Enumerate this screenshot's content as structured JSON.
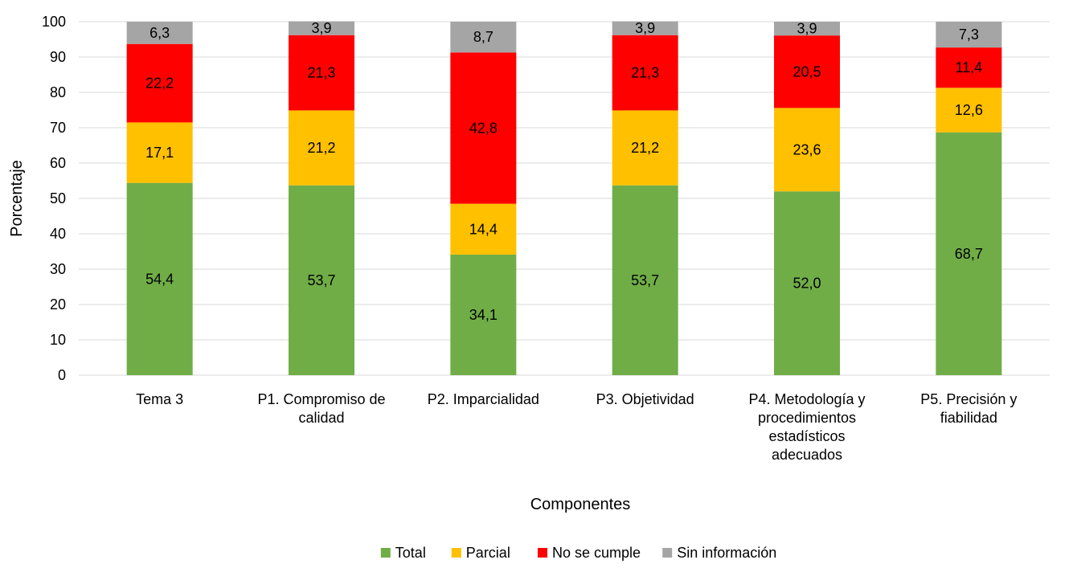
{
  "chart_data": {
    "type": "bar",
    "stacked": true,
    "categories": [
      [
        "Tema 3"
      ],
      [
        "P1. Compromiso de",
        "calidad"
      ],
      [
        "P2. Imparcialidad"
      ],
      [
        "P3. Objetividad"
      ],
      [
        "P4. Metodología y",
        "procedimientos",
        "estadísticos",
        "adecuados"
      ],
      [
        "P5. Precisión y",
        "fiabilidad"
      ]
    ],
    "series": [
      {
        "name": "Total",
        "color": "#70ad47",
        "values": [
          54.4,
          53.7,
          34.1,
          53.7,
          52.0,
          68.7
        ],
        "labels": [
          "54,4",
          "53,7",
          "34,1",
          "53,7",
          "52,0",
          "68,7"
        ]
      },
      {
        "name": "Parcial",
        "color": "#ffc000",
        "values": [
          17.1,
          21.2,
          14.4,
          21.2,
          23.6,
          12.6
        ],
        "labels": [
          "17,1",
          "21,2",
          "14,4",
          "21,2",
          "23,6",
          "12,6"
        ]
      },
      {
        "name": "No se cumple",
        "color": "#ff0000",
        "values": [
          22.2,
          21.3,
          42.8,
          21.3,
          20.5,
          11.4
        ],
        "labels": [
          "22,2",
          "21,3",
          "42,8",
          "21,3",
          "20,5",
          "11,4"
        ]
      },
      {
        "name": "Sin información",
        "color": "#a5a5a5",
        "values": [
          6.3,
          3.9,
          8.7,
          3.9,
          3.9,
          7.3
        ],
        "labels": [
          "6,3",
          "3,9",
          "8,7",
          "3,9",
          "3,9",
          "7,3"
        ]
      }
    ],
    "xlabel": "Componentes",
    "ylabel": "Porcentaje",
    "ylim": [
      0,
      100
    ],
    "yticks": [
      0,
      10,
      20,
      30,
      40,
      50,
      60,
      70,
      80,
      90,
      100
    ],
    "grid": true,
    "legend_position": "bottom"
  }
}
